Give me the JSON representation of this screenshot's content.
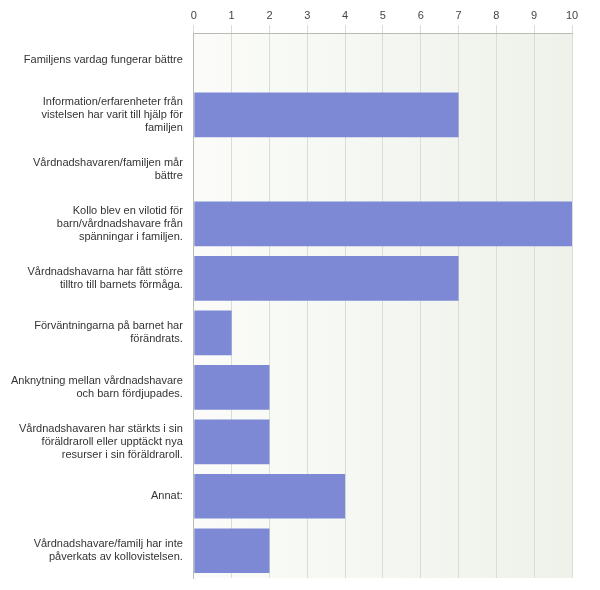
{
  "chart_data": {
    "type": "bar",
    "orientation": "horizontal",
    "categories": [
      "Familjens vardag fungerar bättre",
      "Information/erfarenheter från vistelsen har varit till hjälp för familjen",
      "Vårdnadshavaren/familjen mår bättre",
      "Kollo blev en vilotid för barn/vårdnadshavare från spänningar i familjen.",
      "Vårdnadshavarna har fått större tilltro till barnets förmåga.",
      "Förväntningarna på barnet har förändrats.",
      "Anknytning mellan vårdnadshavare och barn fördjupades.",
      "Vårdnadshavaren har stärkts i sin föräldraroll eller upptäckt nya resurser i sin föräldraroll.",
      "Annat:",
      "Vårdnadshavare/familj har inte påverkats av kollovistelsen."
    ],
    "values": [
      0,
      7,
      0,
      10,
      7,
      1,
      2,
      2,
      4,
      2
    ],
    "color": "#7d89d5",
    "xlim": [
      0,
      10
    ],
    "xticks": [
      0,
      1,
      2,
      3,
      4,
      5,
      6,
      7,
      8,
      9,
      10
    ],
    "grid": true
  }
}
